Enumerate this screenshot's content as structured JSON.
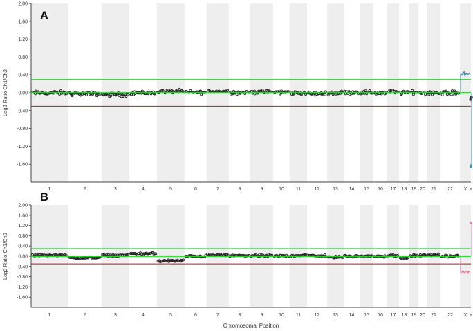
{
  "chart_data": [
    {
      "type": "scatter",
      "panel_label": "A",
      "ylabel": "Log2 Ratio Ch1/Ch2",
      "xlabel": "",
      "ylim": [
        -2.0,
        2.0
      ],
      "yticks": [
        2.0,
        1.6,
        1.2,
        0.8,
        0.4,
        0.0,
        -0.4,
        -0.8,
        -1.2,
        -1.6
      ],
      "ytick_labels": [
        "2.00",
        "1.60",
        "1.20",
        "0.80",
        "0.40",
        "0.00",
        "-0.40",
        "-0.80",
        "-1.20",
        "-1.60"
      ],
      "categories": [
        "1",
        "2",
        "3",
        "4",
        "5",
        "6",
        "7",
        "8",
        "9",
        "10",
        "11",
        "12",
        "13",
        "14",
        "15",
        "16",
        "17",
        "18",
        "19",
        "20",
        "21",
        "22",
        "X",
        "Y"
      ],
      "thresholds": {
        "upper": 0.3,
        "lower": -0.3
      },
      "grid": false,
      "chromosome_means": [
        0.0,
        -0.02,
        -0.04,
        0.0,
        0.03,
        0.01,
        0.03,
        0.01,
        0.02,
        0.01,
        0.0,
        -0.02,
        0.0,
        0.01,
        0.01,
        0.0,
        0.02,
        0.0,
        0.01,
        0.01,
        0.0,
        0.0,
        null,
        -0.12
      ],
      "sex_chromosomes": {
        "X": {
          "series": "reference",
          "value": 0.42
        },
        "Y": {
          "series": "reference",
          "value": -1.65
        }
      },
      "colors": {
        "band": "#eeeeee",
        "baseline": "#22dd22",
        "upper": "#33cc33",
        "lower": "#a02020",
        "points": "#222222",
        "reference": "#4a89a8"
      }
    },
    {
      "type": "scatter",
      "panel_label": "B",
      "ylabel": "Log2 Ratio Ch1/Ch2",
      "xlabel": "Chromosomal Position",
      "ylim": [
        -2.0,
        2.0
      ],
      "yticks": [
        2.0,
        1.6,
        1.2,
        0.8,
        0.4,
        0.0,
        -0.4,
        -0.8,
        -1.2,
        -1.6
      ],
      "ytick_labels": [
        "2.00",
        "1.60",
        "1.20",
        "0.80",
        "0.40",
        "0.00",
        "-0.40",
        "-0.80",
        "-1.20",
        "-1.60"
      ],
      "categories": [
        "1",
        "2",
        "3",
        "4",
        "5",
        "6",
        "7",
        "8",
        "9",
        "10",
        "11",
        "12",
        "13",
        "14",
        "15",
        "16",
        "17",
        "18",
        "19",
        "20",
        "21",
        "22",
        "X",
        "Y"
      ],
      "thresholds": {
        "upper": 0.3,
        "lower": -0.3
      },
      "grid": false,
      "chromosome_means": [
        0.04,
        -0.06,
        0.03,
        0.1,
        -0.18,
        0.0,
        0.04,
        0.02,
        0.02,
        0.01,
        0.03,
        0.02,
        -0.04,
        0.01,
        0.0,
        0.0,
        0.02,
        -0.08,
        0.02,
        0.03,
        0.05,
        0.0,
        null,
        null
      ],
      "sex_chromosomes": {
        "X": {
          "series": "reference",
          "value": -0.62
        },
        "Y": {
          "series": "reference",
          "value": 1.3
        }
      },
      "colors": {
        "band": "#eeeeee",
        "baseline": "#22dd22",
        "upper": "#33cc33",
        "lower": "#a02020",
        "points": "#222222",
        "reference": "#e07fa6"
      }
    }
  ]
}
